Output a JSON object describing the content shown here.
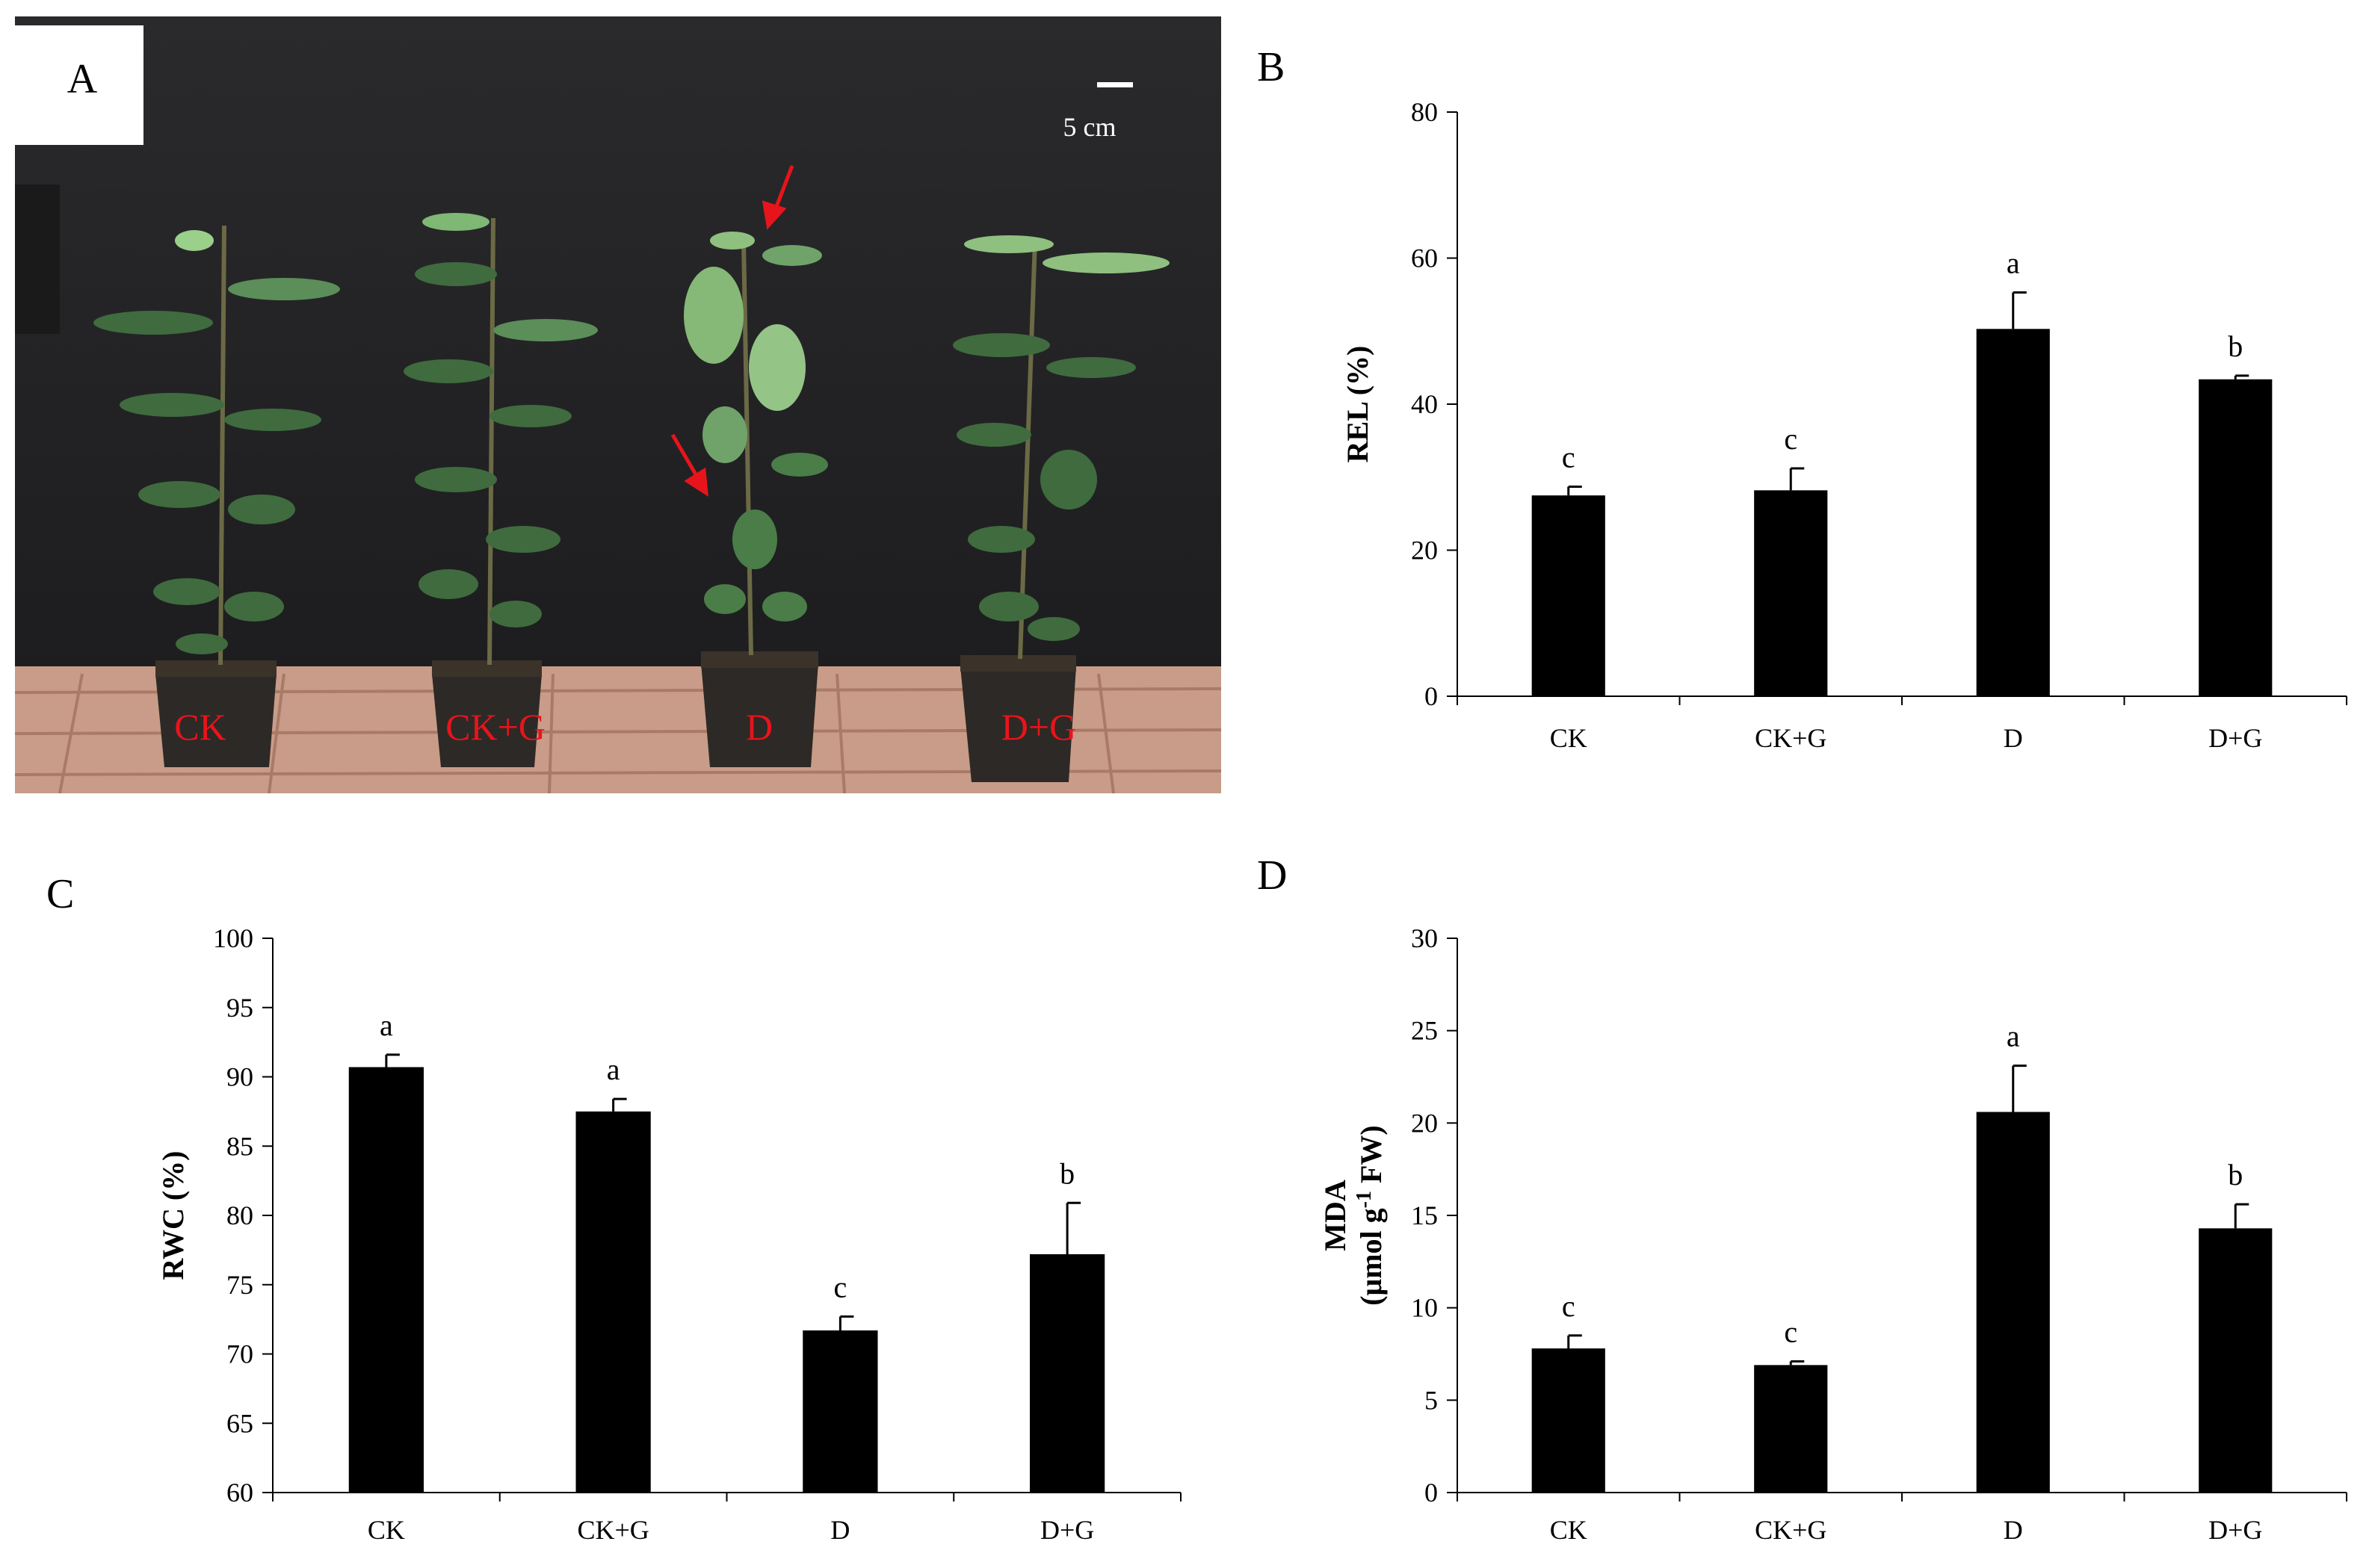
{
  "panel_labels": {
    "A": "A",
    "B": "B",
    "C": "C",
    "D": "D"
  },
  "photo": {
    "scale_bar_label": "5 cm",
    "plant_labels": [
      "CK",
      "CK+G",
      "D",
      "D+G"
    ],
    "label_color": "#e8141b",
    "arrow_color": "#e8141b",
    "backdrop_color": "#232325",
    "ground_color": "#c79a86"
  },
  "chart_data": [
    {
      "panel": "B",
      "type": "bar",
      "categories": [
        "CK",
        "CK+G",
        "D",
        "D+G"
      ],
      "values": [
        27.5,
        28.2,
        50.3,
        43.4
      ],
      "errors": [
        1.2,
        3.0,
        5.0,
        0.5
      ],
      "significance": [
        "c",
        "c",
        "a",
        "b"
      ],
      "ylabel": "REL (%)",
      "ylim": [
        0,
        80
      ],
      "yticks": [
        0,
        20,
        40,
        60,
        80
      ],
      "bar_color": "#000000",
      "grid": false
    },
    {
      "panel": "C",
      "type": "bar",
      "categories": [
        "CK",
        "CK+G",
        "D",
        "D+G"
      ],
      "values": [
        90.7,
        87.5,
        71.7,
        77.2
      ],
      "errors": [
        0.9,
        0.9,
        1.0,
        3.7
      ],
      "significance": [
        "a",
        "a",
        "c",
        "b"
      ],
      "ylabel": "RWC (%)",
      "ylim": [
        60,
        100
      ],
      "yticks": [
        60,
        65,
        70,
        75,
        80,
        85,
        90,
        95,
        100
      ],
      "bar_color": "#000000",
      "grid": false
    },
    {
      "panel": "D",
      "type": "bar",
      "categories": [
        "CK",
        "CK+G",
        "D",
        "D+G"
      ],
      "values": [
        7.8,
        6.9,
        20.6,
        14.3
      ],
      "errors": [
        0.7,
        0.2,
        2.5,
        1.3
      ],
      "significance": [
        "c",
        "c",
        "a",
        "b"
      ],
      "ylabel": "MDA",
      "ylabel_line2": [
        "(μmol g",
        "-1",
        " FW)"
      ],
      "ylim": [
        0,
        30
      ],
      "yticks": [
        0,
        5,
        10,
        15,
        20,
        25,
        30
      ],
      "bar_color": "#000000",
      "grid": false
    }
  ]
}
